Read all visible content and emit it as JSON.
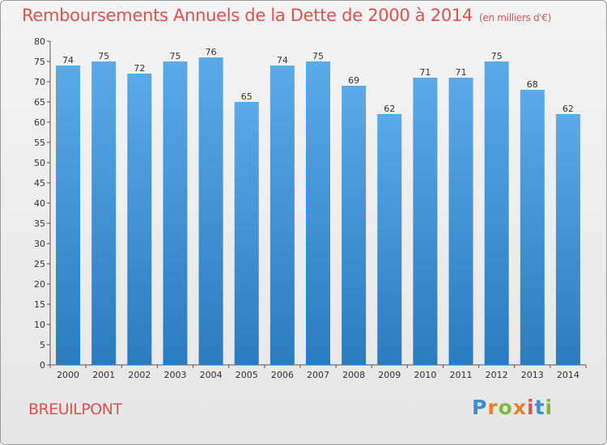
{
  "header": {
    "title": "Remboursements Annuels de la Dette de 2000 à 2014",
    "unit": "(en milliers d'€)"
  },
  "footer": {
    "town": "BREUILPONT",
    "logo": "Proxiti"
  },
  "colors": {
    "title": "#d9534f",
    "bar_top": "#5aaae8",
    "bar_bottom": "#2a7cc0",
    "logo_letters": [
      "#3a8fd4",
      "#e8812a",
      "#7fba3c",
      "#e8812a",
      "#d9534f",
      "#3a8fd4",
      "#7fba3c"
    ]
  },
  "chart_data": {
    "type": "bar",
    "title": "Remboursements Annuels de la Dette de 2000 à 2014",
    "categories": [
      "2000",
      "2001",
      "2002",
      "2003",
      "2004",
      "2005",
      "2006",
      "2007",
      "2008",
      "2009",
      "2010",
      "2011",
      "2012",
      "2013",
      "2014"
    ],
    "values": [
      74,
      75,
      72,
      75,
      76,
      65,
      74,
      75,
      69,
      62,
      71,
      71,
      75,
      68,
      62
    ],
    "ylim": [
      0,
      80
    ],
    "yticks": [
      0,
      5,
      10,
      15,
      20,
      25,
      30,
      35,
      40,
      45,
      50,
      55,
      60,
      65,
      70,
      75,
      80
    ],
    "grid": false,
    "data_labels": true
  }
}
